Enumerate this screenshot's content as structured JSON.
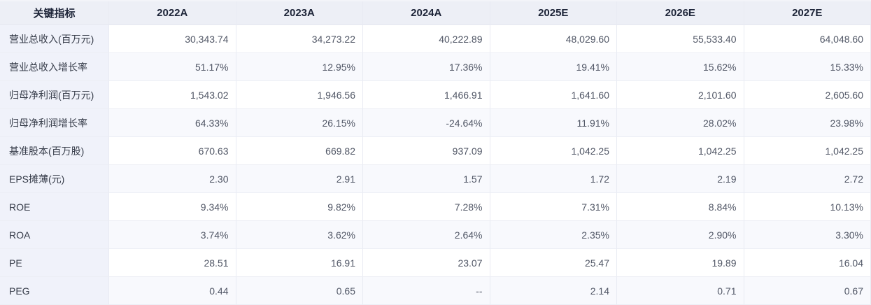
{
  "table": {
    "header": {
      "indicator_label": "关键指标",
      "columns": [
        "2022A",
        "2023A",
        "2024A",
        "2025E",
        "2026E",
        "2027E"
      ]
    },
    "rows": [
      {
        "label": "营业总收入(百万元)",
        "values": [
          "30,343.74",
          "34,273.22",
          "40,222.89",
          "48,029.60",
          "55,533.40",
          "64,048.60"
        ],
        "styles": [
          "normal",
          "normal",
          "normal",
          "estimate",
          "estimate",
          "estimate"
        ]
      },
      {
        "label": "营业总收入增长率",
        "values": [
          "51.17%",
          "12.95%",
          "17.36%",
          "19.41%",
          "15.62%",
          "15.33%"
        ],
        "styles": [
          "up",
          "up",
          "up",
          "up",
          "up",
          "up"
        ]
      },
      {
        "label": "归母净利润(百万元)",
        "values": [
          "1,543.02",
          "1,946.56",
          "1,466.91",
          "1,641.60",
          "2,101.60",
          "2,605.60"
        ],
        "styles": [
          "normal",
          "normal",
          "normal",
          "estimate",
          "estimate",
          "estimate"
        ]
      },
      {
        "label": "归母净利润增长率",
        "values": [
          "64.33%",
          "26.15%",
          "-24.64%",
          "11.91%",
          "28.02%",
          "23.98%"
        ],
        "styles": [
          "up",
          "up",
          "down",
          "up",
          "up",
          "up"
        ]
      },
      {
        "label": "基准股本(百万股)",
        "values": [
          "670.63",
          "669.82",
          "937.09",
          "1,042.25",
          "1,042.25",
          "1,042.25"
        ],
        "styles": [
          "normal",
          "normal",
          "normal",
          "normal",
          "normal",
          "normal"
        ]
      },
      {
        "label": "EPS摊薄(元)",
        "values": [
          "2.30",
          "2.91",
          "1.57",
          "1.72",
          "2.19",
          "2.72"
        ],
        "styles": [
          "normal",
          "normal",
          "normal",
          "estimate",
          "estimate",
          "estimate"
        ]
      },
      {
        "label": "ROE",
        "values": [
          "9.34%",
          "9.82%",
          "7.28%",
          "7.31%",
          "8.84%",
          "10.13%"
        ],
        "styles": [
          "normal",
          "normal",
          "normal",
          "normal",
          "normal",
          "normal"
        ]
      },
      {
        "label": "ROA",
        "values": [
          "3.74%",
          "3.62%",
          "2.64%",
          "2.35%",
          "2.90%",
          "3.30%"
        ],
        "styles": [
          "normal",
          "normal",
          "normal",
          "normal",
          "normal",
          "normal"
        ]
      },
      {
        "label": "PE",
        "values": [
          "28.51",
          "16.91",
          "23.07",
          "25.47",
          "19.89",
          "16.04"
        ],
        "styles": [
          "normal",
          "normal",
          "normal",
          "normal",
          "normal",
          "normal"
        ]
      },
      {
        "label": "PEG",
        "values": [
          "0.44",
          "0.65",
          "--",
          "2.14",
          "0.71",
          "0.67"
        ],
        "styles": [
          "normal",
          "normal",
          "normal",
          "normal",
          "normal",
          "normal"
        ]
      }
    ],
    "colors": {
      "up": "#fa4f2c",
      "down": "#1ba46b",
      "estimate": "#2f7de3",
      "header_text": "#1d2438",
      "label_text": "#363c49",
      "value_text": "#515766",
      "header_bg": "#edeff6",
      "label_bg": "#f0f2fa",
      "stripe_bg": "#f8f9fd"
    }
  }
}
